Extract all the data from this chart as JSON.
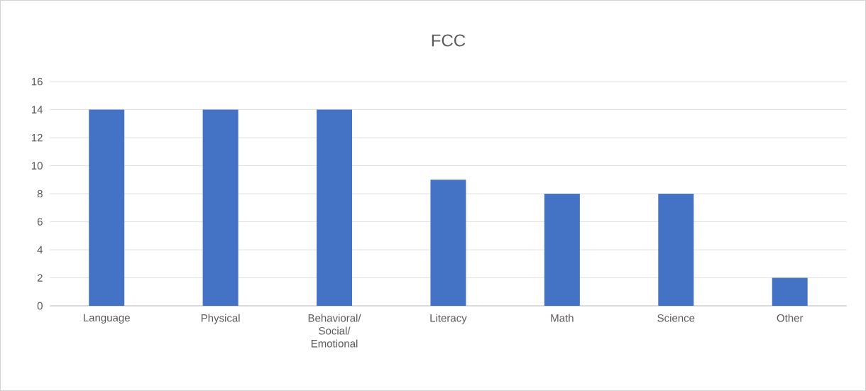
{
  "chart_data": {
    "type": "bar",
    "title": "FCC",
    "categories": [
      "Language",
      "Physical",
      "Behavioral/ Social/ Emotional",
      "Literacy",
      "Math",
      "Science",
      "Other"
    ],
    "values": [
      14,
      14,
      14,
      9,
      8,
      8,
      2
    ],
    "color": "#4472c4",
    "ylim": [
      0,
      16
    ],
    "yticks": [
      0,
      2,
      4,
      6,
      8,
      10,
      12,
      14,
      16
    ],
    "grid": "y"
  }
}
